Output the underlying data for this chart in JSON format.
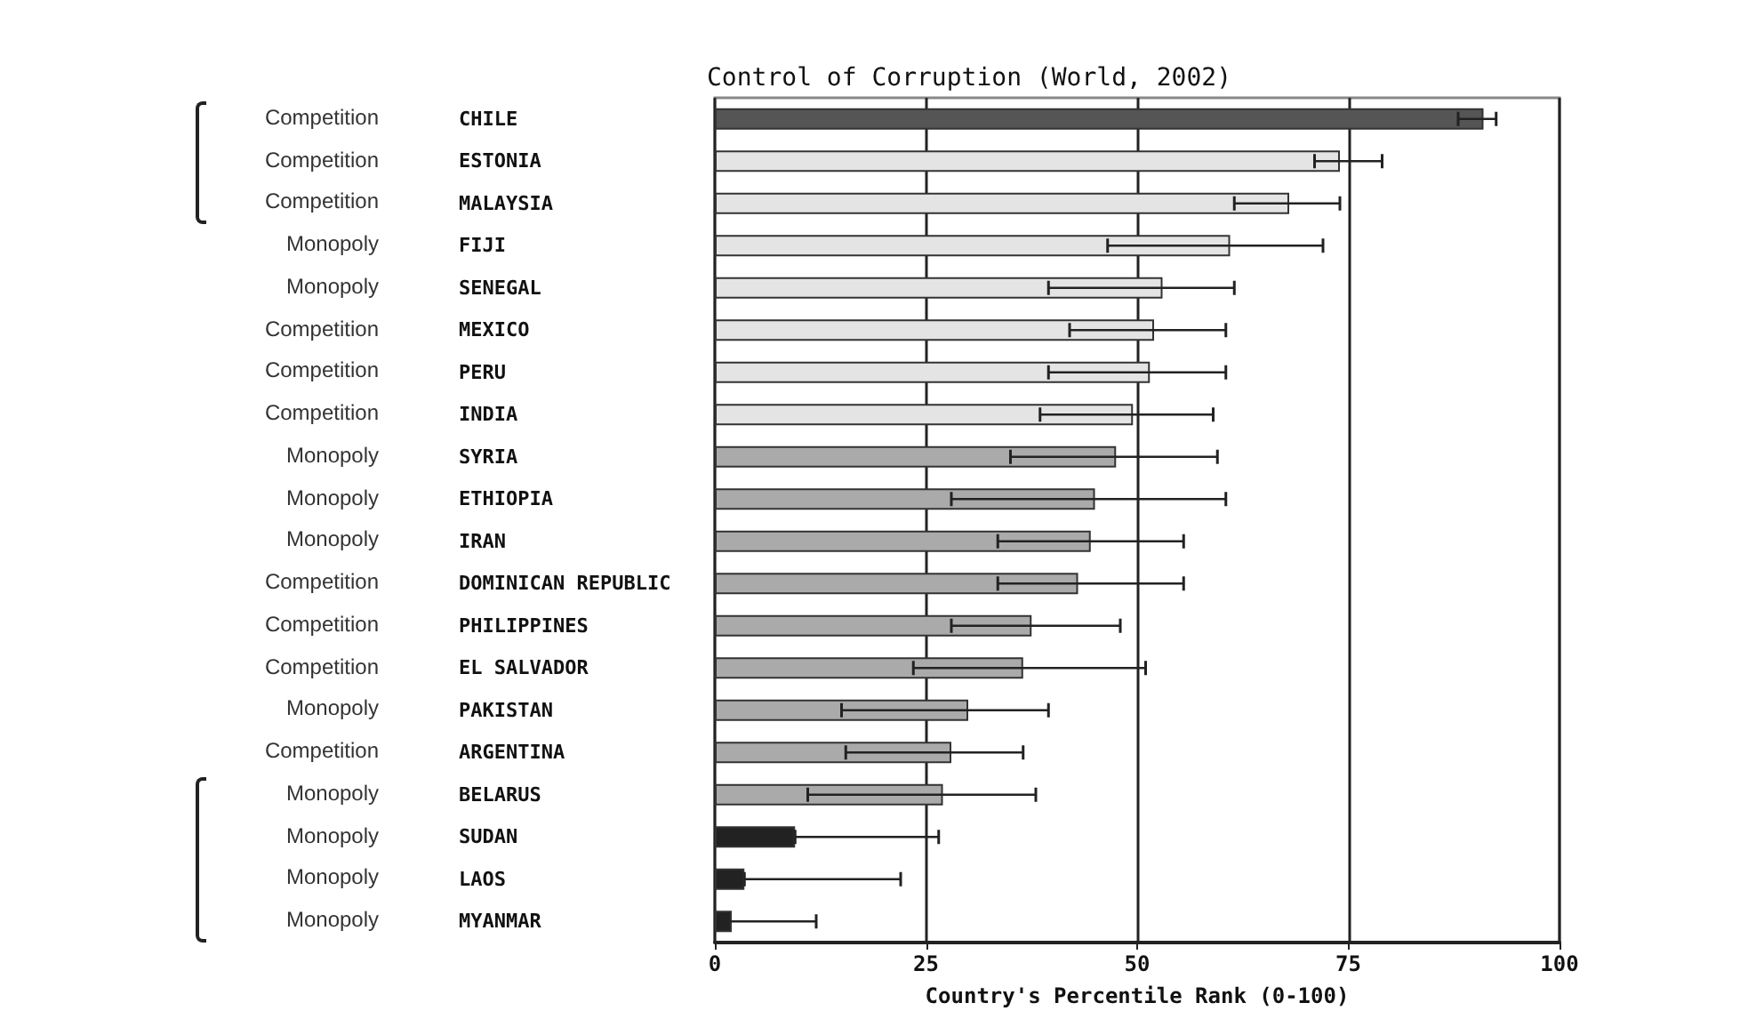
{
  "chart_data": {
    "type": "bar",
    "orientation": "horizontal",
    "title": "Control of Corruption (World, 2002)",
    "xlabel": "Country's Percentile Rank (0-100)",
    "categories": [
      "CHILE",
      "ESTONIA",
      "MALAYSIA",
      "FIJI",
      "SENEGAL",
      "MEXICO",
      "PERU",
      "INDIA",
      "SYRIA",
      "ETHIOPIA",
      "IRAN",
      "DOMINICAN REPUBLIC",
      "PHILIPPINES",
      "EL SALVADOR",
      "PAKISTAN",
      "ARGENTINA",
      "BELARUS",
      "SUDAN",
      "LAOS",
      "MYANMAR"
    ],
    "values": [
      91,
      74,
      68,
      61,
      53,
      52,
      51.5,
      49.5,
      47.5,
      45,
      44.5,
      43,
      37.5,
      36.5,
      30,
      28,
      27,
      9.5,
      3.5,
      2
    ],
    "errors": [
      [
        88,
        92.5
      ],
      [
        71,
        79
      ],
      [
        61.5,
        74
      ],
      [
        46.5,
        72
      ],
      [
        39.5,
        61.5
      ],
      [
        42,
        60.5
      ],
      [
        39.5,
        60.5
      ],
      [
        38.5,
        59
      ],
      [
        35,
        59.5
      ],
      [
        28,
        60.5
      ],
      [
        33.5,
        55.5
      ],
      [
        33.5,
        55.5
      ],
      [
        28,
        48
      ],
      [
        23.5,
        51
      ],
      [
        15,
        39.5
      ],
      [
        15.5,
        36.5
      ],
      [
        11,
        38
      ],
      [
        9.5,
        26.5
      ],
      [
        3.5,
        22
      ],
      [
        0.5,
        12
      ]
    ],
    "colors": [
      "#555555",
      "#e4e4e4",
      "#e4e4e4",
      "#e4e4e4",
      "#e4e4e4",
      "#e4e4e4",
      "#e4e4e4",
      "#e4e4e4",
      "#aaaaaa",
      "#aaaaaa",
      "#aaaaaa",
      "#aaaaaa",
      "#aaaaaa",
      "#aaaaaa",
      "#aaaaaa",
      "#aaaaaa",
      "#aaaaaa",
      "#222222",
      "#222222",
      "#222222"
    ],
    "xlim": [
      0,
      100
    ],
    "xticks": [
      0,
      25,
      50,
      75,
      100
    ],
    "grid": "x",
    "annotations": [
      "Competition",
      "Competition",
      "Competition",
      "Monopoly",
      "Monopoly",
      "Competition",
      "Competition",
      "Competition",
      "Monopoly",
      "Monopoly",
      "Monopoly",
      "Competition",
      "Competition",
      "Competition",
      "Monopoly",
      "Competition",
      "Monopoly",
      "Monopoly",
      "Monopoly",
      "Monopoly"
    ]
  }
}
